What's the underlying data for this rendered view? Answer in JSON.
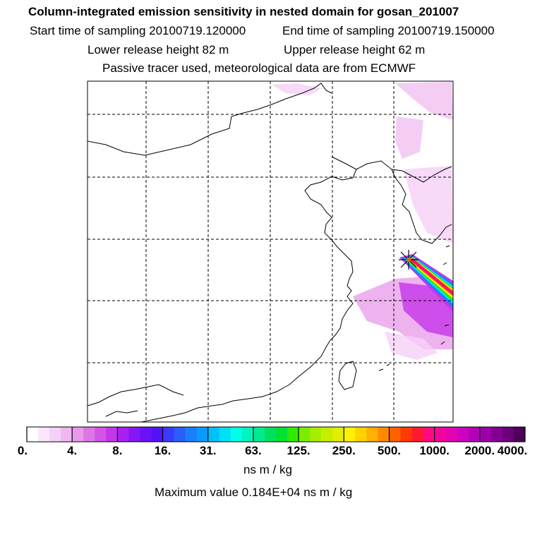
{
  "title": "Column-integrated emission sensitivity in nested domain for gosan_201007",
  "sampling": {
    "start": "Start time of sampling 20100719.120000",
    "end": "End time of sampling 20100719.150000"
  },
  "release": {
    "lower": "Lower release height   82 m",
    "upper": "Upper release height   62 m"
  },
  "tracer_note": "Passive tracer used, meteorological data are from ECMWF",
  "colorbar": {
    "ticks": [
      "0.",
      "4.",
      "8.",
      "16.",
      "31.",
      "63.",
      "125.",
      "250.",
      "500.",
      "1000.",
      "2000.",
      "4000."
    ],
    "colors": [
      "#ffffff",
      "#fbe6fb",
      "#f6d0f6",
      "#f0b8f1",
      "#e89aea",
      "#dd77e4",
      "#d355e6",
      "#c535ea",
      "#a81ff0",
      "#8616f3",
      "#6a12f6",
      "#5214f7",
      "#3a3af9",
      "#2a5ef9",
      "#1a7efa",
      "#0a9cfb",
      "#00c0fa",
      "#00e0f4",
      "#00ffe6",
      "#00f4c0",
      "#00ea90",
      "#00e060",
      "#00e030",
      "#30ea00",
      "#7aee00",
      "#a6ee00",
      "#c6ee00",
      "#e4ee00",
      "#fff200",
      "#ffd200",
      "#ffb000",
      "#ff8a00",
      "#ff6000",
      "#ff3a00",
      "#ff1a30",
      "#ff0a80",
      "#f5049a",
      "#e204b2",
      "#cc02c0",
      "#b400b8",
      "#9c00a8",
      "#840094",
      "#6a007a",
      "#4e0058"
    ],
    "unit": "ns m / kg"
  },
  "max_value": "Maximum value  0.184E+04 ns m / kg",
  "site_marker": "gosan"
}
